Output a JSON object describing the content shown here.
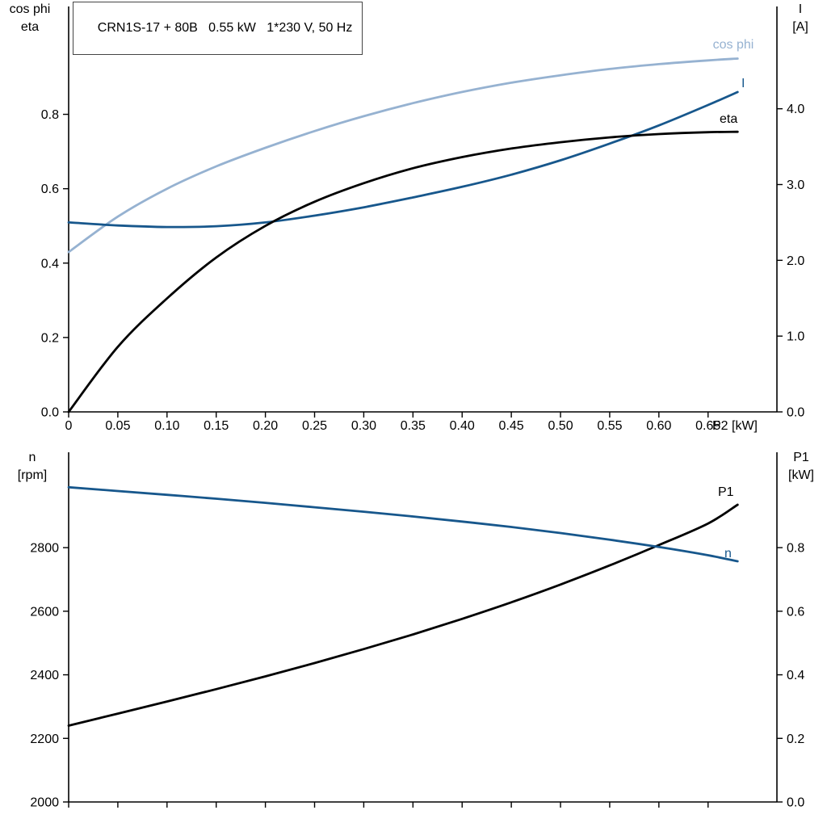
{
  "title_box": {
    "text": "CRN1S-17 + 80B   0.55 kW   1*230 V, 50 Hz"
  },
  "colors": {
    "axis": "#000000",
    "black": "#000000",
    "dark_blue": "#17578c",
    "light_blue": "#96b2d1"
  },
  "chart_data": [
    {
      "type": "line",
      "title": "CRN1S-17 + 80B   0.55 kW   1*230 V, 50 Hz",
      "grid": false,
      "legend_position": "curve-end-labels",
      "x": [
        0,
        0.05,
        0.1,
        0.15,
        0.2,
        0.25,
        0.3,
        0.35,
        0.4,
        0.45,
        0.5,
        0.55,
        0.6,
        0.65,
        0.68
      ],
      "axes": {
        "x": {
          "range": [
            0,
            0.72
          ],
          "tick_values": [
            0,
            0.05,
            0.1,
            0.15,
            0.2,
            0.25,
            0.3,
            0.35,
            0.4,
            0.45,
            0.5,
            0.55,
            0.6,
            0.65
          ],
          "tick_labels": [
            "0",
            "0.05",
            "0.10",
            "0.15",
            "0.20",
            "0.25",
            "0.30",
            "0.35",
            "0.40",
            "0.45",
            "0.50",
            "0.55",
            "0.60",
            "0.65"
          ],
          "axis_label": "P2 [kW]",
          "show_tick_labels": true
        },
        "left": {
          "range": [
            0,
            1.09
          ],
          "tick_values": [
            0,
            0.2,
            0.4,
            0.6,
            0.8
          ],
          "tick_labels": [
            "0.0",
            "0.2",
            "0.4",
            "0.6",
            "0.8"
          ],
          "title_lines": [
            "cos phi",
            "eta"
          ]
        },
        "right": {
          "range": [
            0,
            5.35
          ],
          "tick_values": [
            0,
            1,
            2,
            3,
            4
          ],
          "tick_labels": [
            "0.0",
            "1.0",
            "2.0",
            "3.0",
            "4.0"
          ],
          "title_lines": [
            "I",
            "[A]"
          ]
        }
      },
      "series": [
        {
          "name": "cos phi",
          "axis": "left",
          "color": "light_blue",
          "values": [
            0.43,
            0.525,
            0.6,
            0.66,
            0.71,
            0.755,
            0.795,
            0.83,
            0.86,
            0.885,
            0.905,
            0.922,
            0.935,
            0.945,
            0.95
          ]
        },
        {
          "name": "I",
          "axis": "right",
          "color": "dark_blue",
          "values": [
            2.5,
            2.46,
            2.44,
            2.45,
            2.5,
            2.59,
            2.7,
            2.83,
            2.97,
            3.13,
            3.32,
            3.54,
            3.78,
            4.05,
            4.22
          ]
        },
        {
          "name": "eta",
          "axis": "left",
          "color": "black",
          "values": [
            0.0,
            0.175,
            0.305,
            0.415,
            0.5,
            0.565,
            0.615,
            0.655,
            0.685,
            0.708,
            0.725,
            0.738,
            0.747,
            0.752,
            0.753
          ]
        }
      ]
    },
    {
      "type": "line",
      "title": "",
      "grid": false,
      "legend_position": "curve-end-labels",
      "x": [
        0,
        0.05,
        0.1,
        0.15,
        0.2,
        0.25,
        0.3,
        0.35,
        0.4,
        0.45,
        0.5,
        0.55,
        0.6,
        0.65,
        0.68
      ],
      "axes": {
        "x": {
          "range": [
            0,
            0.72
          ],
          "tick_values": [
            0,
            0.05,
            0.1,
            0.15,
            0.2,
            0.25,
            0.3,
            0.35,
            0.4,
            0.45,
            0.5,
            0.55,
            0.6,
            0.65
          ],
          "tick_labels": [],
          "axis_label": "",
          "show_tick_labels": false
        },
        "left": {
          "range": [
            2000,
            3100
          ],
          "tick_values": [
            2000,
            2200,
            2400,
            2600,
            2800
          ],
          "tick_labels": [
            "2000",
            "2200",
            "2400",
            "2600",
            "2800"
          ],
          "title_lines": [
            "n",
            "[rpm]"
          ]
        },
        "right": {
          "range": [
            0,
            1.1
          ],
          "tick_values": [
            0,
            0.2,
            0.4,
            0.6,
            0.8
          ],
          "tick_labels": [
            "0.0",
            "0.2",
            "0.4",
            "0.6",
            "0.8"
          ],
          "title_lines": [
            "P1",
            "[kW]"
          ]
        }
      },
      "series": [
        {
          "name": "P1",
          "axis": "right",
          "color": "black",
          "values": [
            0.24,
            0.278,
            0.316,
            0.355,
            0.395,
            0.437,
            0.481,
            0.527,
            0.576,
            0.628,
            0.684,
            0.744,
            0.808,
            0.876,
            0.935
          ]
        },
        {
          "name": "n",
          "axis": "left",
          "color": "dark_blue",
          "values": [
            2990,
            2978,
            2966,
            2954,
            2941,
            2927,
            2913,
            2898,
            2882,
            2865,
            2846,
            2825,
            2802,
            2776,
            2757
          ]
        }
      ]
    }
  ]
}
